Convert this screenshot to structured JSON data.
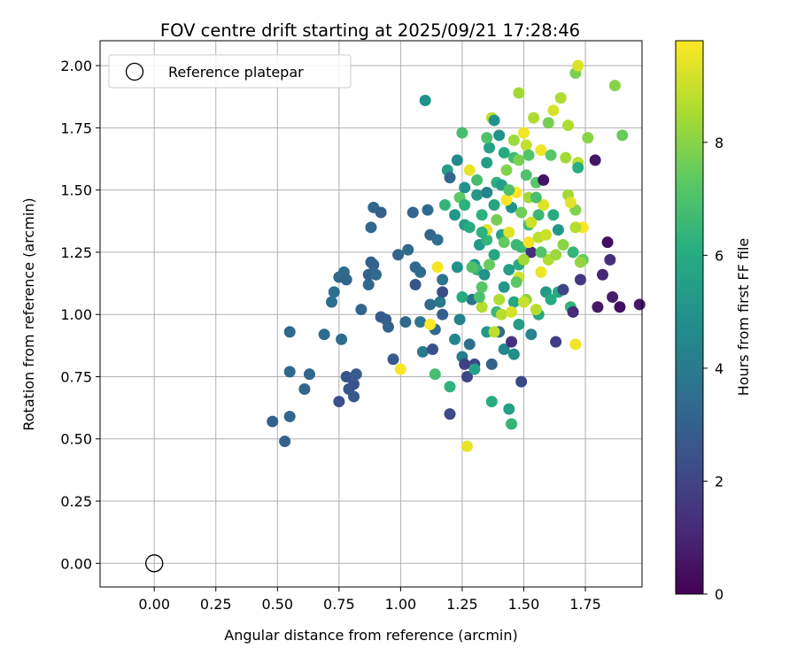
{
  "chart_data": {
    "type": "scatter",
    "title": "FOV centre drift starting at 2025/09/21 17:28:46",
    "xlabel": "Angular distance from reference (arcmin)",
    "ylabel": "Rotation from reference (arcmin)",
    "xlim": [
      -0.22,
      1.98
    ],
    "ylim": [
      -0.095,
      2.1
    ],
    "xticks": [
      0.0,
      0.25,
      0.5,
      0.75,
      1.0,
      1.25,
      1.5,
      1.75
    ],
    "xtick_labels": [
      "0.00",
      "0.25",
      "0.50",
      "0.75",
      "1.00",
      "1.25",
      "1.50",
      "1.75"
    ],
    "yticks": [
      0.0,
      0.25,
      0.5,
      0.75,
      1.0,
      1.25,
      1.5,
      1.75,
      2.0
    ],
    "ytick_labels": [
      "0.00",
      "0.25",
      "0.50",
      "0.75",
      "1.00",
      "1.25",
      "1.50",
      "1.75",
      "2.00"
    ],
    "grid": true,
    "legend": {
      "position": "top-left",
      "entries": [
        "Reference platepar"
      ]
    },
    "reference_point": {
      "x": 0.0,
      "y": 0.0,
      "label": "Reference platepar"
    },
    "colorbar": {
      "label": "Hours from first FF file",
      "range": [
        0,
        9.8
      ],
      "ticks": [
        0,
        2,
        4,
        6,
        8
      ],
      "tick_labels": [
        "0",
        "2",
        "4",
        "6",
        "8"
      ],
      "colormap": "viridis"
    },
    "points": [
      [
        0.48,
        0.57,
        3.0
      ],
      [
        0.53,
        0.49,
        3.1
      ],
      [
        0.55,
        0.59,
        3.2
      ],
      [
        0.55,
        0.93,
        3.3
      ],
      [
        0.55,
        0.77,
        3.3
      ],
      [
        0.61,
        0.7,
        3.2
      ],
      [
        0.63,
        0.76,
        3.3
      ],
      [
        0.69,
        0.92,
        3.5
      ],
      [
        0.72,
        1.05,
        3.6
      ],
      [
        0.73,
        1.09,
        3.6
      ],
      [
        0.75,
        0.65,
        2.4
      ],
      [
        0.76,
        0.9,
        3.4
      ],
      [
        0.75,
        1.15,
        3.3
      ],
      [
        0.77,
        1.17,
        3.4
      ],
      [
        0.78,
        1.14,
        3.2
      ],
      [
        0.78,
        0.75,
        2.6
      ],
      [
        0.79,
        0.7,
        2.6
      ],
      [
        0.81,
        0.72,
        2.5
      ],
      [
        0.81,
        0.67,
        2.7
      ],
      [
        0.82,
        0.76,
        2.8
      ],
      [
        0.84,
        1.02,
        3.2
      ],
      [
        0.87,
        1.12,
        3.3
      ],
      [
        0.87,
        1.16,
        3.0
      ],
      [
        0.88,
        1.21,
        3.0
      ],
      [
        0.88,
        1.35,
        3.3
      ],
      [
        0.89,
        1.43,
        3.2
      ],
      [
        0.89,
        1.2,
        3.1
      ],
      [
        0.9,
        1.16,
        3.4
      ],
      [
        0.92,
        1.41,
        3.0
      ],
      [
        0.92,
        0.99,
        2.7
      ],
      [
        0.94,
        0.98,
        2.8
      ],
      [
        0.95,
        0.95,
        3.1
      ],
      [
        0.97,
        0.82,
        2.7
      ],
      [
        0.99,
        1.24,
        3.2
      ],
      [
        1.02,
        0.97,
        3.3
      ],
      [
        1.03,
        1.26,
        3.4
      ],
      [
        1.05,
        1.41,
        3.2
      ],
      [
        1.06,
        1.12,
        2.6
      ],
      [
        1.06,
        1.19,
        3.3
      ],
      [
        1.08,
        1.17,
        3.5
      ],
      [
        1.08,
        0.97,
        3.8
      ],
      [
        1.09,
        0.85,
        4.0
      ],
      [
        1.1,
        1.86,
        5.0
      ],
      [
        1.11,
        1.42,
        3.3
      ],
      [
        1.12,
        1.32,
        3.2
      ],
      [
        1.12,
        1.04,
        3.4
      ],
      [
        1.13,
        0.86,
        2.4
      ],
      [
        1.14,
        0.94,
        3.3
      ],
      [
        1.15,
        1.3,
        3.6
      ],
      [
        1.16,
        1.05,
        3.9
      ],
      [
        1.17,
        1.0,
        3.0
      ],
      [
        1.17,
        1.14,
        3.7
      ],
      [
        1.17,
        1.09,
        2.3
      ],
      [
        1.19,
        1.58,
        5.4
      ],
      [
        1.2,
        1.55,
        3.2
      ],
      [
        1.2,
        0.6,
        2.2
      ],
      [
        1.22,
        1.4,
        5.2
      ],
      [
        1.22,
        0.9,
        4.5
      ],
      [
        1.23,
        1.62,
        4.6
      ],
      [
        1.23,
        1.19,
        4.9
      ],
      [
        1.24,
        0.98,
        4.3
      ],
      [
        1.25,
        1.73,
        6.8
      ],
      [
        1.25,
        0.83,
        4.1
      ],
      [
        1.26,
        1.51,
        5.0
      ],
      [
        1.26,
        1.36,
        5.5
      ],
      [
        1.26,
        0.8,
        1.9
      ],
      [
        1.27,
        0.75,
        2.0
      ],
      [
        1.28,
        0.88,
        3.6
      ],
      [
        1.29,
        1.06,
        3.7
      ],
      [
        1.3,
        1.2,
        5.1
      ],
      [
        1.3,
        0.8,
        2.2
      ],
      [
        1.31,
        1.48,
        5.3
      ],
      [
        1.31,
        1.18,
        6.5
      ],
      [
        1.32,
        1.28,
        5.2
      ],
      [
        1.33,
        1.4,
        6.2
      ],
      [
        1.34,
        1.16,
        4.9
      ],
      [
        1.35,
        0.93,
        5.2
      ],
      [
        1.35,
        1.49,
        4.3
      ],
      [
        1.35,
        1.61,
        5.5
      ],
      [
        1.35,
        1.3,
        6.4
      ],
      [
        1.36,
        1.67,
        5.6
      ],
      [
        1.37,
        0.8,
        3.1
      ],
      [
        1.37,
        1.79,
        8.9
      ],
      [
        1.38,
        1.78,
        5.0
      ],
      [
        1.38,
        1.44,
        5.7
      ],
      [
        1.38,
        1.24,
        5.8
      ],
      [
        1.39,
        1.53,
        6.2
      ],
      [
        1.39,
        1.01,
        6.6
      ],
      [
        1.4,
        1.72,
        5.0
      ],
      [
        1.4,
        0.93,
        3.4
      ],
      [
        1.41,
        1.52,
        5.4
      ],
      [
        1.41,
        1.32,
        5.7
      ],
      [
        1.42,
        1.65,
        6.0
      ],
      [
        1.42,
        1.11,
        5.1
      ],
      [
        1.42,
        0.86,
        4.5
      ],
      [
        1.43,
        1.58,
        7.9
      ],
      [
        1.44,
        0.62,
        5.5
      ],
      [
        1.44,
        1.18,
        5.4
      ],
      [
        1.45,
        1.43,
        4.9
      ],
      [
        1.45,
        0.89,
        1.3
      ],
      [
        1.46,
        1.63,
        6.7
      ],
      [
        1.46,
        1.05,
        5.8
      ],
      [
        1.46,
        1.7,
        8.3
      ],
      [
        1.46,
        0.84,
        4.8
      ],
      [
        1.47,
        1.28,
        6.6
      ],
      [
        1.48,
        1.89,
        8.4
      ],
      [
        1.48,
        1.62,
        7.8
      ],
      [
        1.48,
        1.2,
        6.0
      ],
      [
        1.48,
        0.96,
        5.4
      ],
      [
        1.49,
        1.27,
        6.6
      ],
      [
        1.49,
        0.73,
        2.2
      ],
      [
        1.5,
        1.73,
        9.6
      ],
      [
        1.51,
        1.56,
        7.0
      ],
      [
        1.51,
        1.06,
        8.1
      ],
      [
        1.52,
        1.47,
        8.4
      ],
      [
        1.52,
        1.36,
        6.7
      ],
      [
        1.53,
        1.25,
        1.3
      ],
      [
        1.53,
        0.92,
        4.4
      ],
      [
        1.54,
        1.79,
        8.6
      ],
      [
        1.55,
        1.53,
        7.2
      ],
      [
        1.56,
        1.4,
        6.6
      ],
      [
        1.56,
        1.0,
        5.8
      ],
      [
        1.57,
        1.66,
        9.6
      ],
      [
        1.57,
        1.17,
        9.6
      ],
      [
        1.58,
        1.54,
        0.5
      ],
      [
        1.59,
        1.09,
        5.3
      ],
      [
        1.6,
        1.77,
        7.7
      ],
      [
        1.61,
        1.06,
        6.0
      ],
      [
        1.62,
        1.4,
        5.9
      ],
      [
        1.62,
        1.82,
        9.2
      ],
      [
        1.63,
        0.89,
        1.8
      ],
      [
        1.64,
        1.34,
        5.2
      ],
      [
        1.64,
        1.09,
        5.9
      ],
      [
        1.65,
        1.87,
        8.6
      ],
      [
        1.66,
        1.1,
        2.1
      ],
      [
        1.67,
        1.63,
        8.4
      ],
      [
        1.68,
        1.76,
        8.6
      ],
      [
        1.68,
        1.48,
        8.4
      ],
      [
        1.69,
        1.03,
        6.4
      ],
      [
        1.7,
        1.25,
        6.4
      ],
      [
        1.7,
        1.01,
        1.2
      ],
      [
        1.71,
        1.42,
        7.9
      ],
      [
        1.71,
        1.97,
        7.8
      ],
      [
        1.71,
        0.88,
        9.6
      ],
      [
        1.72,
        1.61,
        8.8
      ],
      [
        1.72,
        2.0,
        9.3
      ],
      [
        1.72,
        1.59,
        6.1
      ],
      [
        1.73,
        1.14,
        1.6
      ],
      [
        1.74,
        1.22,
        7.4
      ],
      [
        1.74,
        1.35,
        9.7
      ],
      [
        1.76,
        1.71,
        8.0
      ],
      [
        1.79,
        1.62,
        0.6
      ],
      [
        1.8,
        1.03,
        0.6
      ],
      [
        1.82,
        1.16,
        1.0
      ],
      [
        1.84,
        1.29,
        0.4
      ],
      [
        1.85,
        1.22,
        1.3
      ],
      [
        1.86,
        1.07,
        0.8
      ],
      [
        1.87,
        1.92,
        8.0
      ],
      [
        1.89,
        1.03,
        0.4
      ],
      [
        1.9,
        1.72,
        7.5
      ],
      [
        1.97,
        1.04,
        0.6
      ],
      [
        1.0,
        0.78,
        9.7
      ],
      [
        1.12,
        0.96,
        9.9
      ],
      [
        1.15,
        1.19,
        9.7
      ],
      [
        1.27,
        0.47,
        9.5
      ],
      [
        1.28,
        1.58,
        9.5
      ],
      [
        1.33,
        1.03,
        8.7
      ],
      [
        1.35,
        1.34,
        9.4
      ],
      [
        1.38,
        0.93,
        8.8
      ],
      [
        1.4,
        1.06,
        8.6
      ],
      [
        1.41,
        1.0,
        8.7
      ],
      [
        1.43,
        1.46,
        9.7
      ],
      [
        1.44,
        1.33,
        9.4
      ],
      [
        1.45,
        1.01,
        9.2
      ],
      [
        1.47,
        1.49,
        9.8
      ],
      [
        1.48,
        1.15,
        9.1
      ],
      [
        1.5,
        1.05,
        9.0
      ],
      [
        1.5,
        1.22,
        8.4
      ],
      [
        1.51,
        1.68,
        8.9
      ],
      [
        1.52,
        1.29,
        9.6
      ],
      [
        1.53,
        1.37,
        9.1
      ],
      [
        1.55,
        1.02,
        8.7
      ],
      [
        1.56,
        1.31,
        8.8
      ],
      [
        1.58,
        1.44,
        9.3
      ],
      [
        1.59,
        1.32,
        9.0
      ],
      [
        1.6,
        1.22,
        8.6
      ],
      [
        1.63,
        1.24,
        8.3
      ],
      [
        1.66,
        1.28,
        8.0
      ],
      [
        1.69,
        1.45,
        9.4
      ],
      [
        1.71,
        1.35,
        8.7
      ],
      [
        1.73,
        1.21,
        8.2
      ],
      [
        1.24,
        1.47,
        7.3
      ],
      [
        1.29,
        1.19,
        7.0
      ],
      [
        1.31,
        1.54,
        6.8
      ],
      [
        1.33,
        1.11,
        7.2
      ],
      [
        1.35,
        1.71,
        7.0
      ],
      [
        1.36,
        1.2,
        7.5
      ],
      [
        1.39,
        1.38,
        7.7
      ],
      [
        1.42,
        1.29,
        7.4
      ],
      [
        1.44,
        1.5,
        7.0
      ],
      [
        1.47,
        1.13,
        7.3
      ],
      [
        1.49,
        1.41,
        7.6
      ],
      [
        1.52,
        1.64,
        7.1
      ],
      [
        1.55,
        1.47,
        6.9
      ],
      [
        1.57,
        1.25,
        7.1
      ],
      [
        1.61,
        1.64,
        7.2
      ],
      [
        1.14,
        0.76,
        6.8
      ],
      [
        1.2,
        0.71,
        6.3
      ],
      [
        1.25,
        1.07,
        5.9
      ],
      [
        1.28,
        1.35,
        6.1
      ],
      [
        1.3,
        0.78,
        5.6
      ],
      [
        1.37,
        0.65,
        6.0
      ],
      [
        1.45,
        0.56,
        6.4
      ],
      [
        1.32,
        1.07,
        6.9
      ],
      [
        1.26,
        1.44,
        6.2
      ],
      [
        1.18,
        1.44,
        6.4
      ],
      [
        1.33,
        1.33,
        6.3
      ]
    ]
  }
}
